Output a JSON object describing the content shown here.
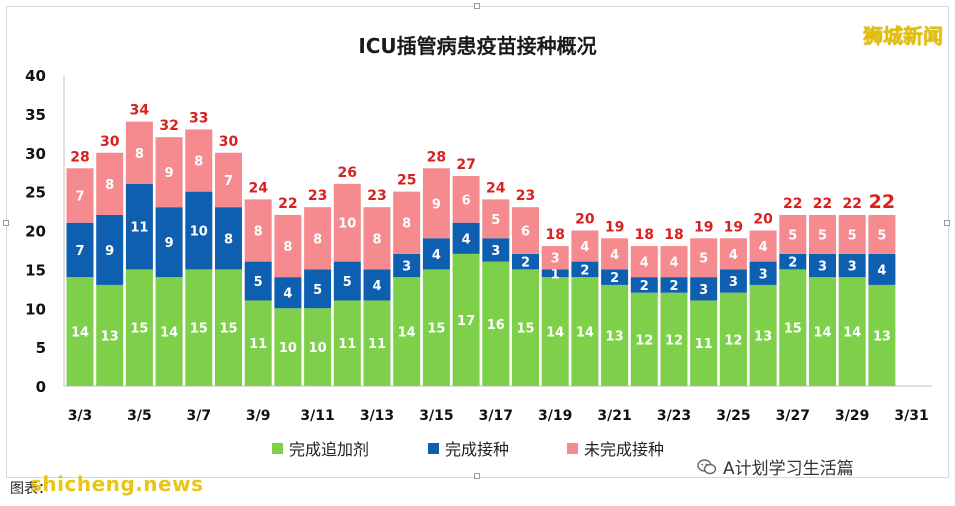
{
  "title": "ICU插管病患疫苗接种概况",
  "brand": "狮城新闻",
  "watermark": "shicheng.news",
  "footer": {
    "label": "图表：",
    "extra": ""
  },
  "wechat_account": "A计划学习生活篇",
  "colors": {
    "booster": "#7ed04a",
    "complete": "#0f5fb0",
    "incomplete": "#f58a8f",
    "total_label": "#d9201e",
    "segment_label": "#ffffff"
  },
  "legend": [
    {
      "name": "完成追加剂",
      "color": "#7ed04a"
    },
    {
      "name": "完成接种",
      "color": "#0f5fb0"
    },
    {
      "name": "未完成接种",
      "color": "#f58a8f"
    }
  ],
  "chart_data": {
    "type": "bar",
    "stacked": true,
    "title": "ICU插管病患疫苗接种概况",
    "xlabel": "",
    "ylabel": "",
    "ylim": [
      0,
      40
    ],
    "yticks": [
      0,
      5,
      10,
      15,
      20,
      25,
      30,
      35,
      40
    ],
    "grid": false,
    "legend_position": "bottom",
    "xtick_labels": [
      "3/3",
      "3/5",
      "3/7",
      "3/9",
      "3/11",
      "3/13",
      "3/15",
      "3/17",
      "3/19",
      "3/21",
      "3/23",
      "3/25",
      "3/27",
      "3/29",
      "3/31"
    ],
    "categories": [
      "3/3",
      "3/4",
      "3/5",
      "3/6",
      "3/7",
      "3/8",
      "3/9",
      "3/10",
      "3/11",
      "3/12",
      "3/13",
      "3/14",
      "3/15",
      "3/16",
      "3/17",
      "3/18",
      "3/19",
      "3/20",
      "3/21",
      "3/22",
      "3/23",
      "3/24",
      "3/25",
      "3/26",
      "3/27",
      "3/28",
      "3/29",
      "3/30"
    ],
    "series": [
      {
        "name": "完成追加剂",
        "values": [
          14,
          13,
          15,
          14,
          15,
          15,
          11,
          10,
          10,
          11,
          11,
          14,
          15,
          17,
          16,
          15,
          14,
          14,
          13,
          12,
          12,
          11,
          12,
          13,
          15,
          14,
          14,
          13
        ]
      },
      {
        "name": "完成接种",
        "values": [
          7,
          9,
          11,
          9,
          10,
          8,
          5,
          4,
          5,
          5,
          4,
          3,
          4,
          4,
          3,
          2,
          1,
          2,
          2,
          2,
          2,
          3,
          3,
          3,
          2,
          3,
          3,
          4
        ]
      },
      {
        "name": "未完成接种",
        "values": [
          7,
          8,
          8,
          9,
          8,
          7,
          8,
          8,
          8,
          10,
          8,
          8,
          9,
          6,
          5,
          6,
          3,
          4,
          4,
          4,
          4,
          5,
          4,
          4,
          5,
          5,
          5,
          5
        ]
      }
    ],
    "totals": [
      28,
      30,
      34,
      32,
      33,
      30,
      24,
      22,
      23,
      26,
      23,
      25,
      28,
      27,
      24,
      23,
      18,
      20,
      19,
      18,
      18,
      19,
      19,
      20,
      22,
      22,
      22,
      22
    ]
  }
}
